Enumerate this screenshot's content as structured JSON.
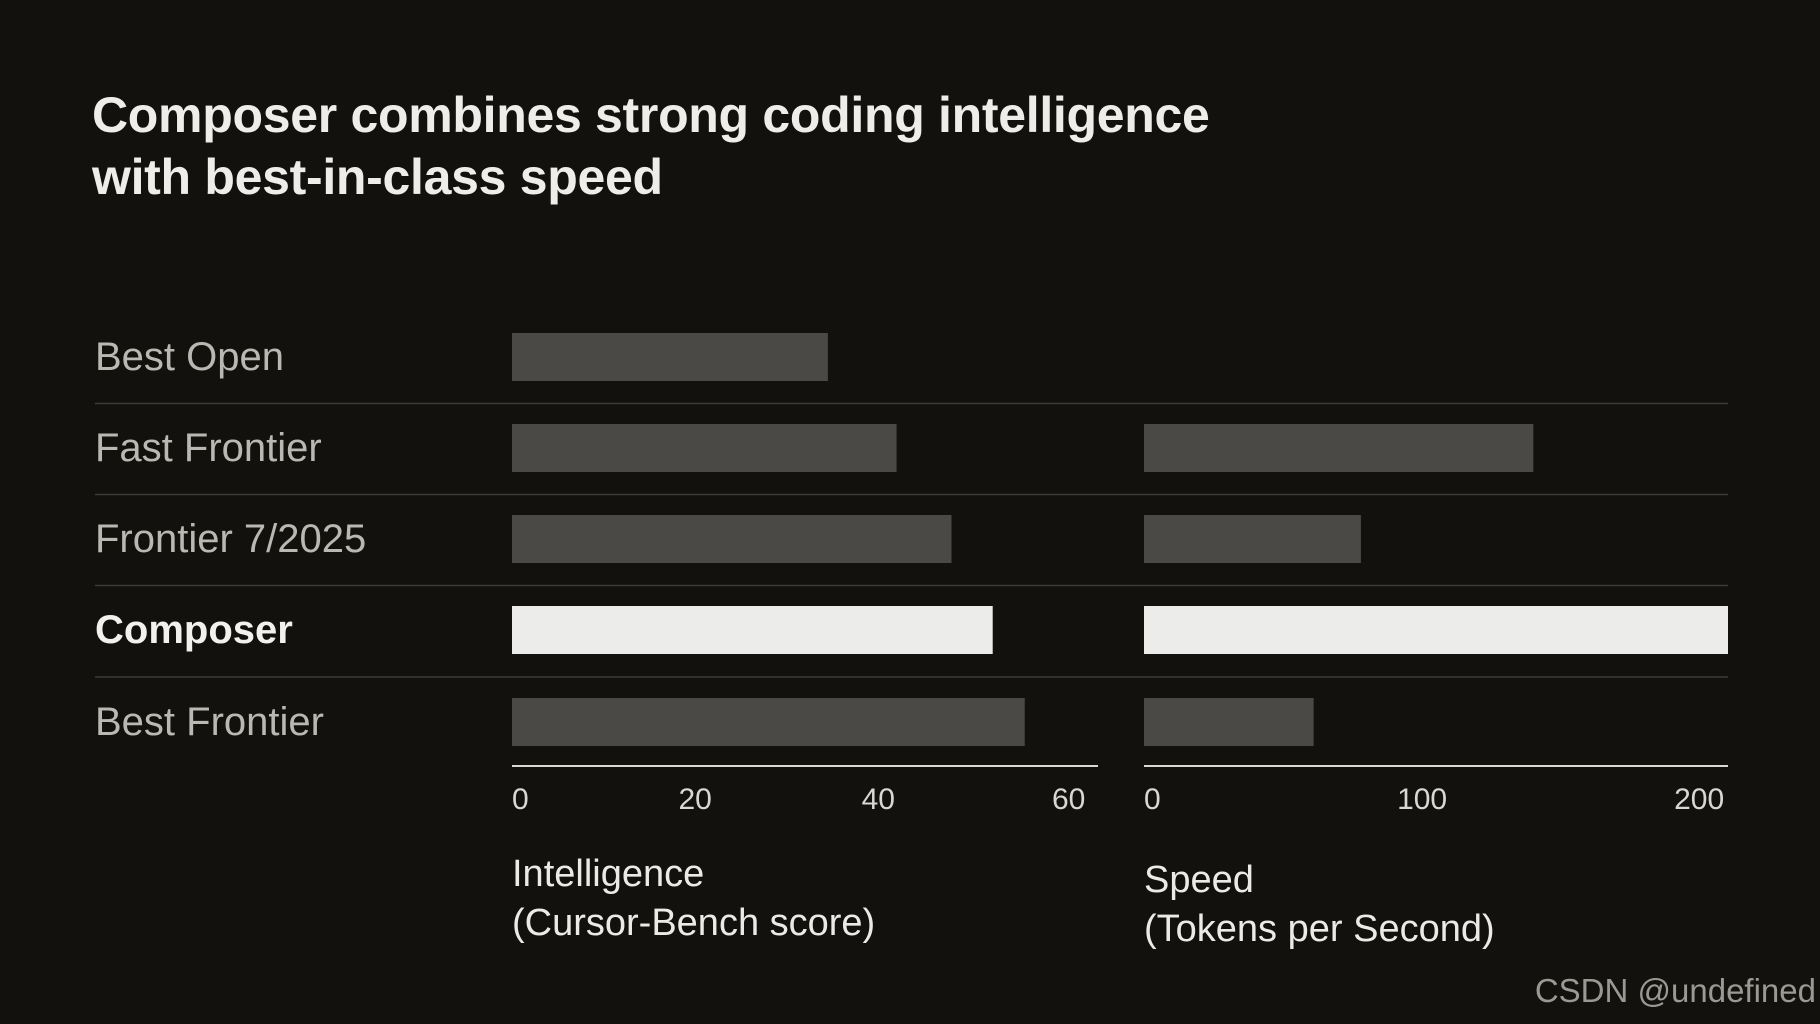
{
  "title_lines": [
    "Composer combines strong coding intelligence",
    "with best-in-class speed"
  ],
  "watermark": "CSDN @undefined",
  "colors": {
    "background": "#12110e",
    "bar_default": "#4a4946",
    "bar_highlight": "#ececea",
    "label_default": "#b9b8b3",
    "label_highlight": "#f2f1ed",
    "divider": "#3c3b38",
    "axis": "#d8d7d3"
  },
  "chart_data": {
    "type": "bar",
    "orientation": "horizontal",
    "categories": [
      "Best Open",
      "Fast Frontier",
      "Frontier 7/2025",
      "Composer",
      "Best Frontier"
    ],
    "highlight": "Composer",
    "panels": [
      {
        "xlabel_lines": [
          "Intelligence",
          "(Cursor-Bench score)"
        ],
        "xlim": [
          0,
          64
        ],
        "ticks": [
          0,
          20,
          40,
          60
        ],
        "values": [
          34.5,
          42,
          48,
          52.5,
          56
        ]
      },
      {
        "xlabel_lines": [
          "Speed",
          "(Tokens per Second)"
        ],
        "xlim": [
          0,
          210
        ],
        "ticks": [
          0,
          100,
          200
        ],
        "values": [
          null,
          140,
          78,
          210,
          61
        ]
      }
    ]
  }
}
